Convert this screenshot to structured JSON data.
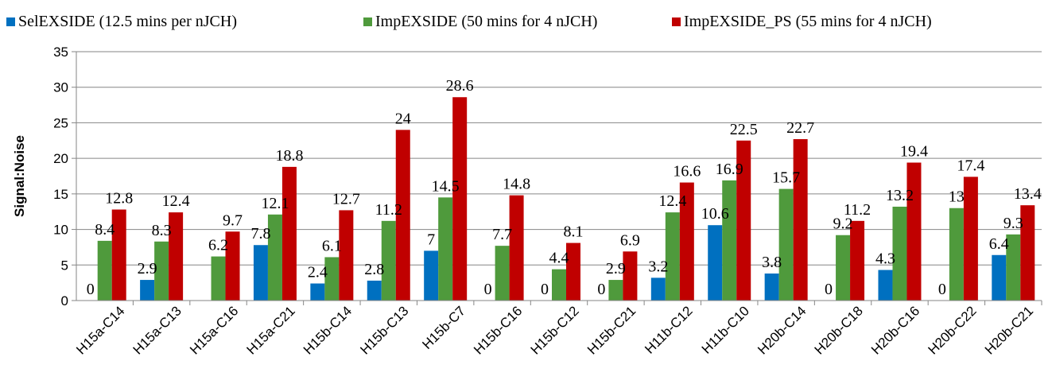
{
  "chart_data": {
    "type": "bar",
    "title": "",
    "xlabel": "",
    "ylabel": "Signal:Noise",
    "ylim": [
      0,
      35
    ],
    "yticks": [
      0,
      5,
      10,
      15,
      20,
      25,
      30,
      35
    ],
    "grid": true,
    "legend_position": "top",
    "categories": [
      "H15a-C14",
      "H15a-C13",
      "H15a-C16",
      "H15a-C21",
      "H15b-C14",
      "H15b-C13",
      "H15b-C7",
      "H15b-C16",
      "H15b-C12",
      "H15b-C21",
      "H11b-C12",
      "H11b-C10",
      "H20b-C14",
      "H20b-C18",
      "H20b-C16",
      "H20b-C22",
      "H20b-C21"
    ],
    "series": [
      {
        "name": "SelEXSIDE (12.5 mins per nJCH)",
        "color": "#0070C0",
        "values": [
          0,
          2.9,
          0,
          7.8,
          2.4,
          2.8,
          7,
          0,
          0,
          0,
          3.2,
          10.6,
          3.8,
          0,
          4.3,
          0,
          6.4
        ],
        "labels": [
          "0",
          "2.9",
          "",
          "7.8",
          "2.4",
          "2.8",
          "7",
          "0",
          "0",
          "0",
          "3.2",
          "10.6",
          "3.8",
          "0",
          "4.3",
          "0",
          "6.4"
        ]
      },
      {
        "name": "ImpEXSIDE (50 mins for 4 nJCH)",
        "color": "#4F9A3C",
        "values": [
          8.4,
          8.3,
          6.2,
          12.1,
          6.1,
          11.2,
          14.5,
          7.7,
          4.4,
          2.9,
          12.4,
          16.9,
          15.7,
          9.2,
          13.2,
          13,
          9.3
        ],
        "labels": [
          "8.4",
          "8.3",
          "6.2",
          "12.1",
          "6.1",
          "11.2",
          "14.5",
          "7.7",
          "4.4",
          "2.9",
          "12.4",
          "16.9",
          "15.7",
          "9.2",
          "13.2",
          "13",
          "9.3"
        ]
      },
      {
        "name": "ImpEXSIDE_PS (55 mins for 4 nJCH)",
        "color": "#C00000",
        "values": [
          12.8,
          12.4,
          9.7,
          18.8,
          12.7,
          24,
          28.6,
          14.8,
          8.1,
          6.9,
          16.6,
          22.5,
          22.7,
          11.2,
          19.4,
          17.4,
          13.4
        ],
        "labels": [
          "12.8",
          "12.4",
          "9.7",
          "18.8",
          "12.7",
          "24",
          "28.6",
          "14.8",
          "8.1",
          "6.9",
          "16.6",
          "22.5",
          "22.7",
          "11.2",
          "19.4",
          "17.4",
          "13.4"
        ]
      }
    ],
    "colors": {
      "axis": "#868686",
      "grid": "#868686"
    }
  }
}
